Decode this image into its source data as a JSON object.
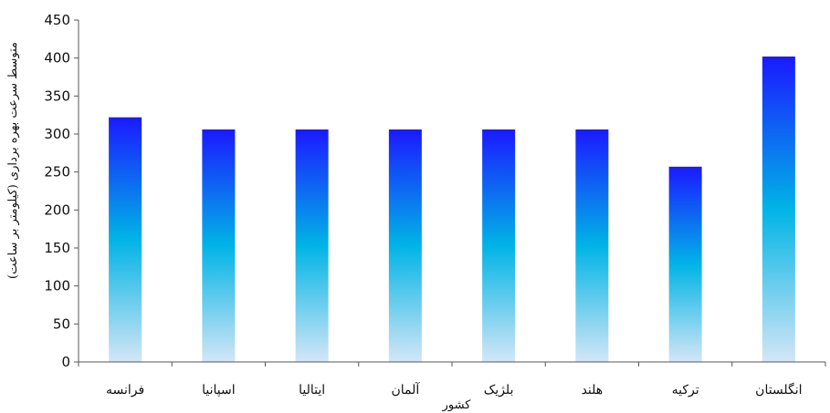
{
  "chart_data": {
    "type": "bar",
    "categories": [
      "فرانسه",
      "اسپانیا",
      "ایتالیا",
      "آلمان",
      "بلژیک",
      "هلند",
      "ترکیه",
      "انگلستان"
    ],
    "values": [
      322,
      306,
      306,
      306,
      306,
      306,
      257,
      402
    ],
    "xlabel": "کشور",
    "ylabel": "متوسط سرعت بهره برداری (کیلومتر بر ساعت)",
    "ylim": [
      0,
      450
    ],
    "yticks": [
      "0",
      "50",
      "100",
      "150",
      "200",
      "250",
      "300",
      "350",
      "400",
      "450"
    ],
    "grid": false,
    "legend": "none",
    "colors": {
      "bar_top": "#1a1aff",
      "bar_mid": "#00b4e6",
      "bar_bottom": "#d4e6f6",
      "axis": "#555555"
    }
  }
}
